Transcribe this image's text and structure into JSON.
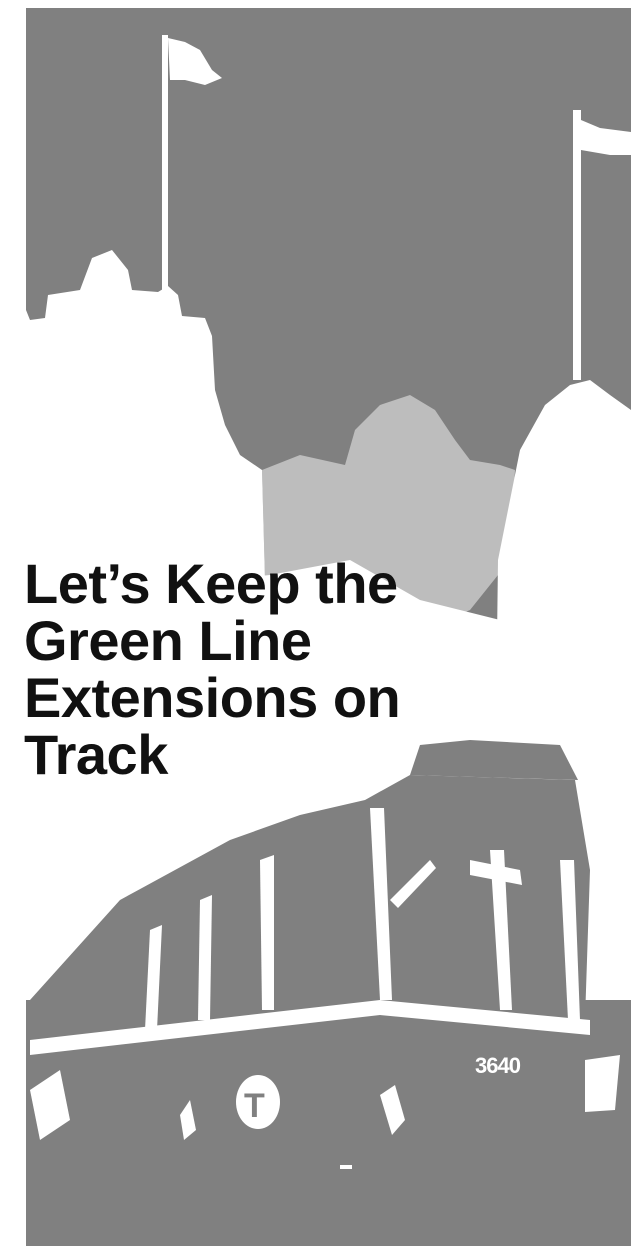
{
  "headline": {
    "lines": [
      "Let’s Keep the",
      "Green Line",
      "Extensions on",
      "Track"
    ]
  },
  "trolley": {
    "fleet_number": "3640",
    "logo_letter": "T"
  },
  "colors": {
    "background_gray": "#808080",
    "light_gray": "#bdbdbd",
    "white": "#ffffff",
    "headline_text": "#111111"
  }
}
